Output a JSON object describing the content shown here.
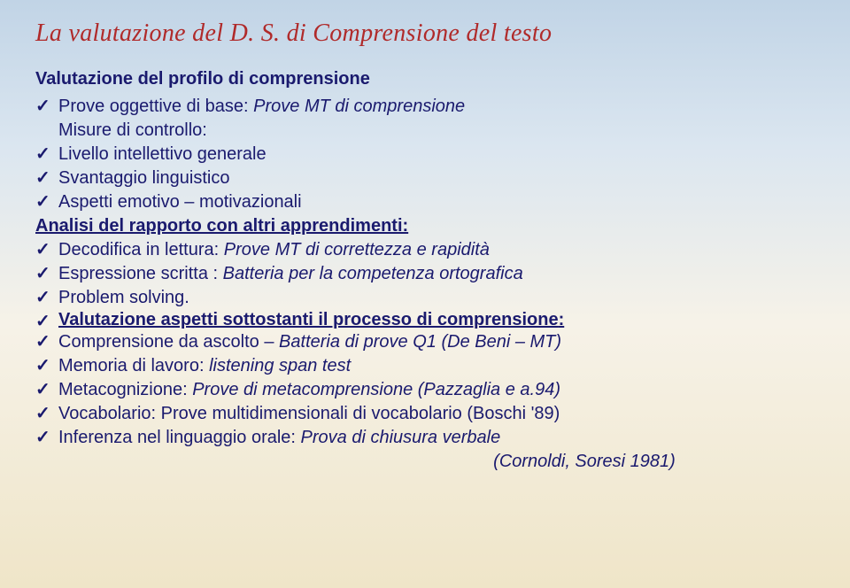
{
  "colors": {
    "title": "#b02a2a",
    "body": "#1a1a6e",
    "bg_top": "#c1d4e6",
    "bg_bottom": "#efe5c8"
  },
  "typography": {
    "title_font": "Georgia italic",
    "body_font": "Verdana",
    "title_size_pt": 22,
    "body_size_pt": 15
  },
  "title": "La valutazione del D. S. di Comprensione del testo",
  "section1": {
    "heading": "Valutazione del profilo di comprensione",
    "l1_pre": "Prove oggettive di base: ",
    "l1_em": "Prove MT di comprensione",
    "l2": "Misure di controllo:",
    "l3": "Livello intellettivo generale",
    "l4": "Svantaggio linguistico",
    "l5": "Aspetti emotivo – motivazionali"
  },
  "section2": {
    "heading": "Analisi del rapporto con altri apprendimenti:",
    "l1_pre": "Decodifica in lettura: ",
    "l1_em": "Prove MT di correttezza e rapidità",
    "l2_pre": "Espressione scritta : ",
    "l2_em": "Batteria per la competenza ortografica",
    "l3": "Problem solving."
  },
  "section3": {
    "heading": "Valutazione aspetti sottostanti il processo di comprensione",
    "l1_pre": "Comprensione da ascolto – ",
    "l1_em": "Batteria di prove Q1 (De Beni – MT)",
    "l2_pre": "Memoria di lavoro: ",
    "l2_em": "listening span test",
    "l3_pre": "Metacognizione: ",
    "l3_em": "Prove di metacomprensione (Pazzaglia e a.94)",
    "l4": "Vocabolario: Prove multidimensionali di vocabolario (Boschi '89)",
    "l5_pre": "Inferenza nel linguaggio orale: ",
    "l5_em": "Prova di chiusura verbale",
    "l6_em": "(Cornoldi, Soresi 1981)"
  }
}
